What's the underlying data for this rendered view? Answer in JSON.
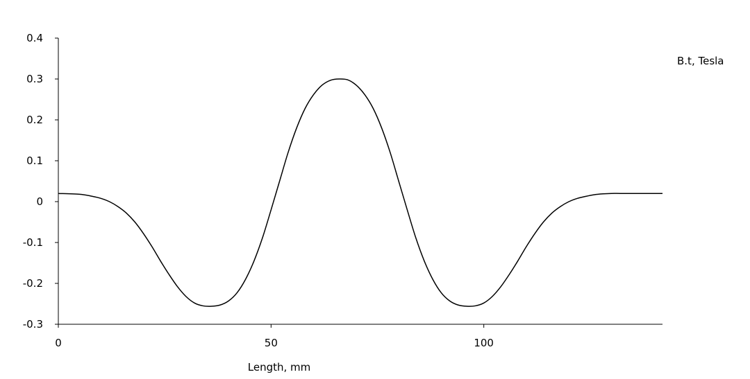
{
  "chart_data": {
    "type": "line",
    "title": "",
    "xlabel": "Length, mm",
    "ylabel": "B.t, Tesla",
    "xlim": [
      0,
      142
    ],
    "ylim": [
      -0.3,
      0.4
    ],
    "xticks": [
      0,
      50,
      100
    ],
    "xtick_labels": [
      "0",
      "50",
      "100"
    ],
    "yticks": [
      0.4,
      0.3,
      0.2,
      0.1,
      0,
      -0.1,
      -0.2,
      -0.3
    ],
    "ytick_labels": [
      "0.4",
      "0.3",
      "0.2",
      "0.1",
      "0",
      "-0.1",
      "-0.2",
      "-0.3"
    ],
    "grid": false,
    "line_color": "#000000",
    "series": [
      {
        "x": [
          0,
          5,
          8,
          10,
          12,
          14,
          16,
          18,
          20,
          22,
          24,
          26,
          28,
          30,
          32,
          34,
          36,
          38,
          40,
          42,
          44,
          46,
          48,
          50,
          52,
          54,
          56,
          58,
          60,
          62,
          64,
          66,
          68,
          70,
          72,
          74,
          76,
          78,
          80,
          82,
          84,
          86,
          88,
          90,
          92,
          94,
          96,
          98,
          100,
          102,
          104,
          106,
          108,
          110,
          112,
          114,
          116,
          118,
          120,
          122,
          124,
          126,
          128,
          130,
          132,
          134,
          137,
          142
        ],
        "y": [
          0.02,
          0.018,
          0.013,
          0.008,
          0.0,
          -0.012,
          -0.028,
          -0.05,
          -0.078,
          -0.11,
          -0.145,
          -0.178,
          -0.208,
          -0.232,
          -0.248,
          -0.255,
          -0.256,
          -0.253,
          -0.243,
          -0.223,
          -0.19,
          -0.145,
          -0.088,
          -0.02,
          0.05,
          0.12,
          0.18,
          0.228,
          0.262,
          0.285,
          0.297,
          0.3,
          0.298,
          0.285,
          0.262,
          0.228,
          0.18,
          0.12,
          0.05,
          -0.02,
          -0.088,
          -0.145,
          -0.19,
          -0.223,
          -0.243,
          -0.253,
          -0.256,
          -0.255,
          -0.248,
          -0.232,
          -0.208,
          -0.178,
          -0.145,
          -0.11,
          -0.078,
          -0.05,
          -0.028,
          -0.012,
          0.0,
          0.008,
          0.013,
          0.017,
          0.019,
          0.02,
          0.02,
          0.02,
          0.02,
          0.02
        ]
      }
    ]
  }
}
